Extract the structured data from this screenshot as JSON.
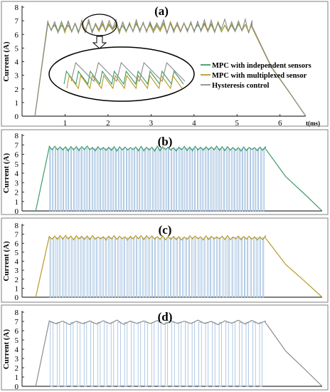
{
  "figure": {
    "colors": {
      "independent": "#3d9a6a",
      "multiplexed": "#b99a25",
      "hysteresis": "#8c8c8c",
      "pulse": "#8fb3d9"
    }
  },
  "chart_data": [
    {
      "panel_label": "(a)",
      "type": "line",
      "ylabel": "Current (A)",
      "xunit": "t(ms)",
      "xlim": [
        0,
        6.6
      ],
      "ylim": [
        0,
        8
      ],
      "x_ticks": [
        1,
        2,
        3,
        4,
        5,
        6
      ],
      "y_ticks": [
        0,
        1,
        2,
        3,
        4,
        5,
        6,
        7,
        8
      ],
      "legend": {
        "position": "right",
        "entries": [
          {
            "label": "MPC with independent sensors",
            "color": "#3d9a6a"
          },
          {
            "label": "MPC with multiplexed sensor",
            "color": "#b99a25"
          },
          {
            "label": "Hysteresis control",
            "color": "#8c8c8c"
          }
        ]
      },
      "annotation": "ellipse with downward arrow to zoomed inset",
      "series": [
        {
          "name": "MPC with independent sensors",
          "color": "#3d9a6a",
          "rise": [
            0.3,
            0.6
          ],
          "peak": 6.5,
          "fall": [
            5.35,
            6.6
          ],
          "ripple": 0.5
        },
        {
          "name": "MPC with multiplexed sensor",
          "color": "#b99a25",
          "rise": [
            0.3,
            0.6
          ],
          "peak": 6.5,
          "fall": [
            5.35,
            6.6
          ],
          "ripple": 0.6
        },
        {
          "name": "Hysteresis control",
          "color": "#8c8c8c",
          "rise": [
            0.3,
            0.6
          ],
          "peak": 6.6,
          "fall": [
            5.35,
            6.6
          ],
          "ripple": 0.7
        }
      ]
    },
    {
      "panel_label": "(b)",
      "type": "line",
      "ylabel": "Current (A)",
      "ylim": [
        0,
        8
      ],
      "y_ticks": [
        0,
        1,
        2,
        3,
        4,
        5,
        6,
        7,
        8
      ],
      "series": [
        {
          "name": "",
          "color": "#3d9a6a",
          "envelope": 6.6,
          "rise": [
            0.3,
            0.6
          ],
          "fall": [
            5.35,
            6.6
          ]
        }
      ],
      "pulses": {
        "color": "#8fb3d9",
        "count": 82,
        "high": 6.6
      }
    },
    {
      "panel_label": "(c)",
      "type": "line",
      "ylabel": "Current (A)",
      "ylim": [
        0,
        8
      ],
      "y_ticks": [
        0,
        1,
        2,
        3,
        4,
        5,
        6,
        7,
        8
      ],
      "series": [
        {
          "name": "",
          "color": "#b99a25",
          "envelope": 6.6,
          "rise": [
            0.3,
            0.6
          ],
          "fall": [
            5.35,
            6.6
          ]
        }
      ],
      "pulses": {
        "color": "#8fb3d9",
        "count": 70,
        "high": 6.6
      }
    },
    {
      "panel_label": "(d)",
      "type": "line",
      "ylabel": "Current (A)",
      "ylim": [
        0,
        8
      ],
      "y_ticks": [
        0,
        1,
        2,
        3,
        4,
        5,
        6,
        7,
        8
      ],
      "series": [
        {
          "name": "",
          "color": "#8c8c8c",
          "envelope": 6.9,
          "rise": [
            0.3,
            0.6
          ],
          "fall": [
            5.35,
            6.6
          ]
        }
      ],
      "pulses": {
        "color": "#8fb3d9",
        "count": 32,
        "high": 6.9
      }
    }
  ]
}
